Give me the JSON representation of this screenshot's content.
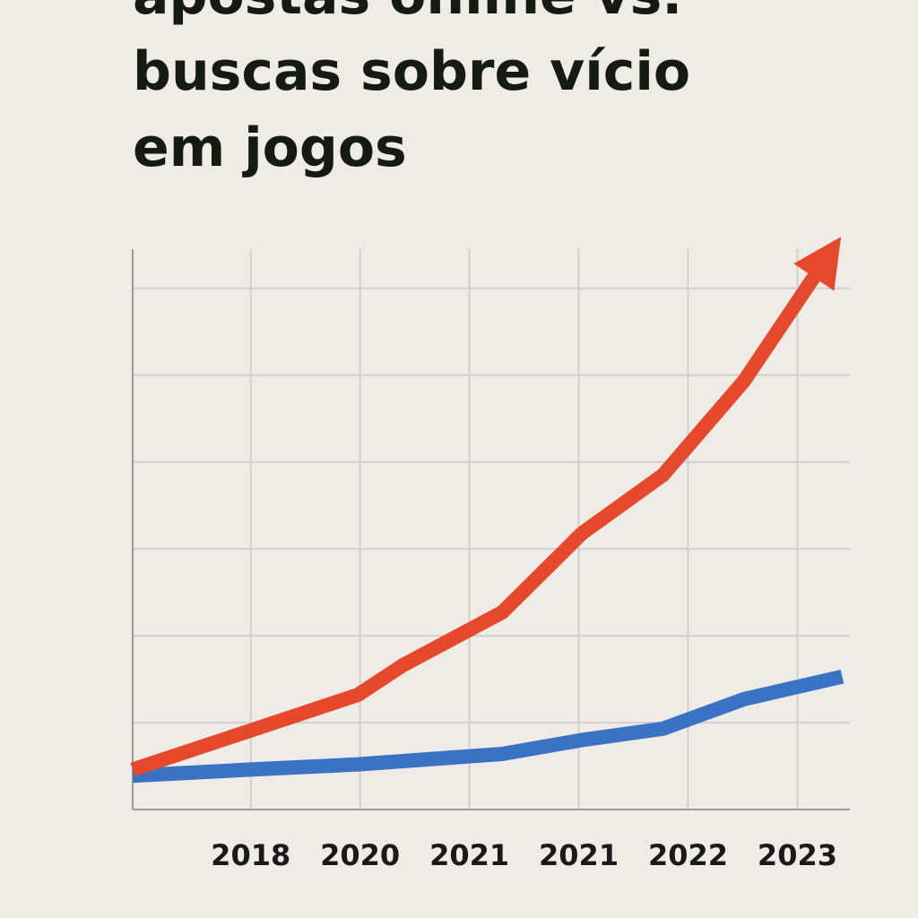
{
  "chart_data": {
    "type": "line",
    "title_lines": [
      "apostas online vs.",
      "buscas sobre vício",
      "em jogos"
    ],
    "categories": [
      "2018",
      "2020",
      "2021",
      "2021",
      "2022",
      "2023"
    ],
    "category_x": [
      1,
      2,
      3,
      4,
      5,
      6
    ],
    "xlim": [
      -0.08,
      6.48
    ],
    "ylim": [
      0,
      6.45
    ],
    "ygrid": [
      1,
      2,
      3,
      4,
      5,
      6
    ],
    "grid": true,
    "series": [
      {
        "color": "#e5482a",
        "arrow": true,
        "x": [
          -0.08,
          1.0,
          1.98,
          2.39,
          3.3,
          4.03,
          4.77,
          5.51,
          6.2
        ],
        "values": [
          0.46,
          0.91,
          1.32,
          1.66,
          2.27,
          3.18,
          3.85,
          4.93,
          6.22
        ]
      },
      {
        "color": "#3a72c4",
        "arrow": false,
        "x": [
          -0.08,
          1.0,
          1.98,
          3.3,
          4.03,
          4.77,
          5.51,
          6.41
        ],
        "values": [
          0.39,
          0.46,
          0.52,
          0.64,
          0.8,
          0.93,
          1.27,
          1.53
        ]
      }
    ]
  }
}
